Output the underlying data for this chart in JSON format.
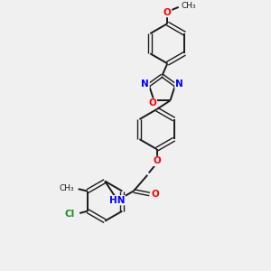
{
  "background_color": "#f0f0f0",
  "bond_color": "#1a1a1a",
  "atom_colors": {
    "N": "#0000ff",
    "O": "#ff0000",
    "Cl": "#228B22",
    "H": "#555555"
  },
  "figsize": [
    3.0,
    3.0
  ],
  "dpi": 100,
  "xlim": [
    0,
    10
  ],
  "ylim": [
    0,
    10
  ]
}
